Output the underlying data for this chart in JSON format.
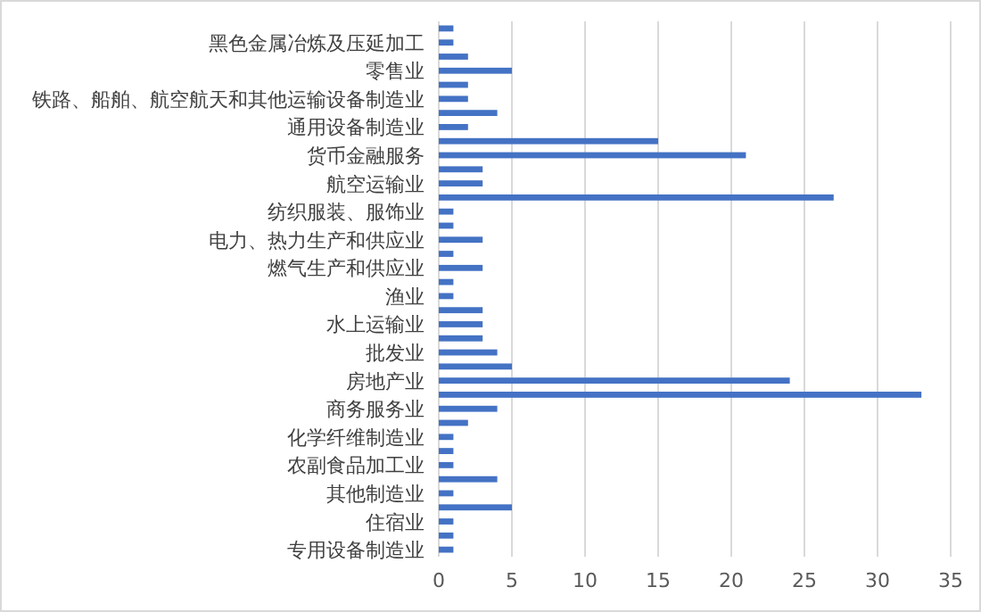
{
  "chart_data": {
    "type": "bar",
    "orientation": "horizontal",
    "color": "#4472c4",
    "grid": "x",
    "categories": [
      null,
      "黑色金属冶炼及压延加工",
      null,
      "零售业",
      null,
      "铁路、船舶、航空航天和其他运输设备制造业",
      null,
      "通用设备制造业",
      null,
      "货币金融服务",
      null,
      "航空运输业",
      null,
      "纺织服装、服饰业",
      null,
      "电力、热力生产和供应业",
      null,
      "燃气生产和供应业",
      null,
      "渔业",
      null,
      "水上运输业",
      null,
      "批发业",
      null,
      "房地产业",
      null,
      "商务服务业",
      null,
      "化学纤维制造业",
      null,
      "农副食品加工业",
      null,
      "其他制造业",
      null,
      "住宿业",
      null,
      "专用设备制造业"
    ],
    "values": [
      1,
      1,
      2,
      5,
      2,
      2,
      4,
      2,
      15,
      21,
      3,
      3,
      27,
      1,
      1,
      3,
      1,
      3,
      1,
      1,
      3,
      3,
      3,
      4,
      5,
      24,
      33,
      4,
      2,
      1,
      1,
      1,
      4,
      1,
      5,
      1,
      1,
      1
    ],
    "xlim": [
      0,
      35
    ],
    "xticks": [
      0,
      5,
      10,
      15,
      20,
      25,
      30,
      35
    ]
  }
}
